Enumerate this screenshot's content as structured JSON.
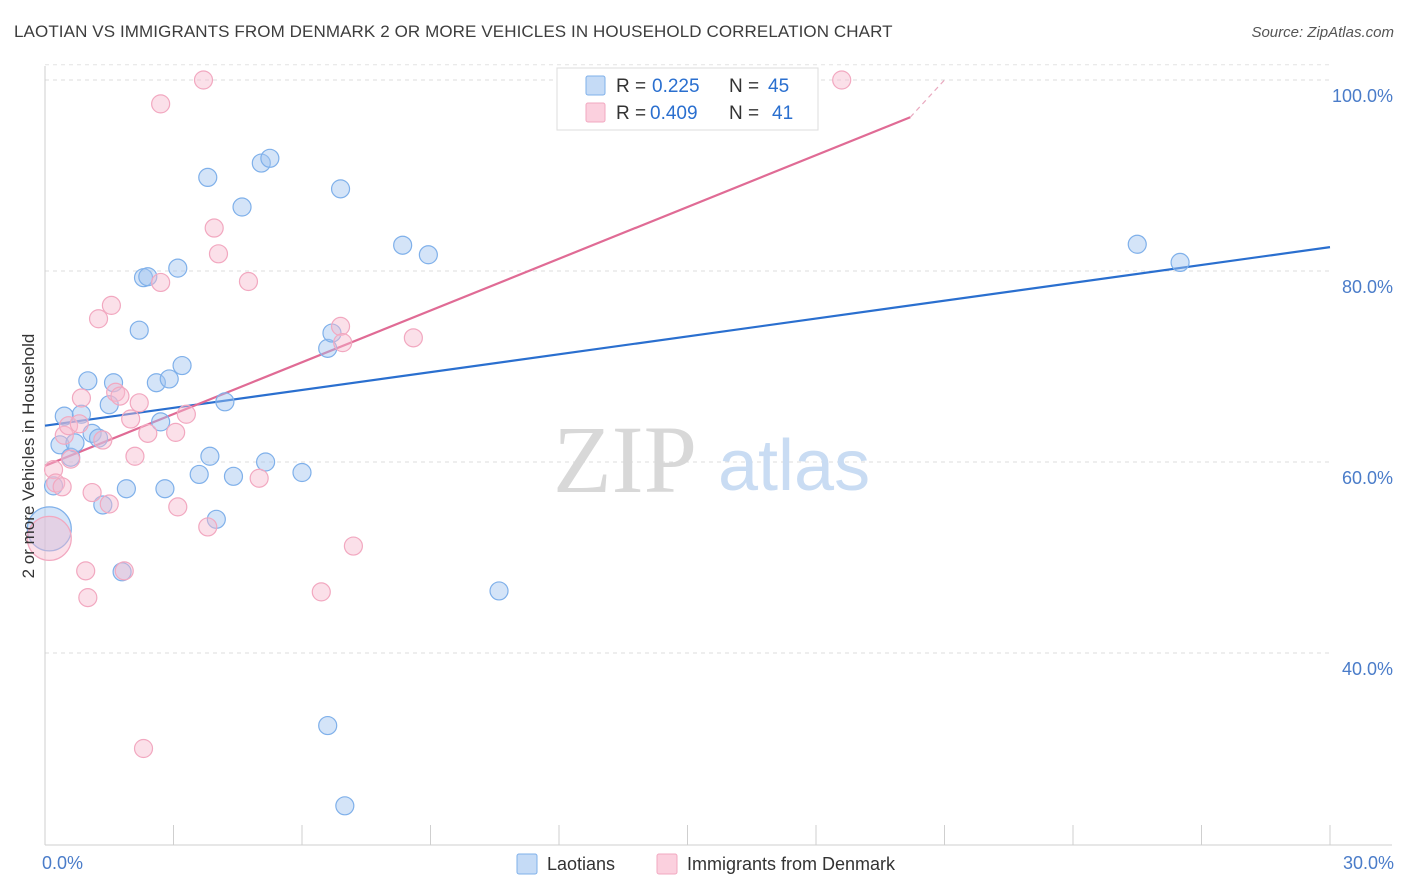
{
  "title": "LAOTIAN VS IMMIGRANTS FROM DENMARK 2 OR MORE VEHICLES IN HOUSEHOLD CORRELATION CHART",
  "source": "Source: ZipAtlas.com",
  "watermark": {
    "zip": "ZIP",
    "atlas": "atlas"
  },
  "chart_data": {
    "type": "scatter",
    "title": "LAOTIAN VS IMMIGRANTS FROM DENMARK 2 OR MORE VEHICLES IN HOUSEHOLD CORRELATION CHART",
    "xlabel": "",
    "ylabel": "2 or more Vehicles in Household",
    "xlim": [
      0,
      30
    ],
    "ylim": [
      20,
      103
    ],
    "x_tick_labels": {
      "left": "0.0%",
      "right": "30.0%"
    },
    "y_ticks": [
      {
        "value": 40,
        "label": "40.0%"
      },
      {
        "value": 60,
        "label": "60.0%"
      },
      {
        "value": 80,
        "label": "80.0%"
      },
      {
        "value": 100,
        "label": "100.0%"
      }
    ],
    "grid": true,
    "legend_position": "top-center",
    "series": [
      {
        "name": "Laotians",
        "color": "#7fb0ea",
        "line_color": "#2a6fcf",
        "R": "0.225",
        "N": "45",
        "trendline": {
          "x": [
            0,
            30
          ],
          "y": [
            63.8,
            82.5
          ]
        },
        "points": [
          {
            "x": 0.1,
            "y": 53.0,
            "big": true
          },
          {
            "x": 0.2,
            "y": 57.5
          },
          {
            "x": 0.35,
            "y": 61.8
          },
          {
            "x": 0.45,
            "y": 64.8
          },
          {
            "x": 0.6,
            "y": 60.5
          },
          {
            "x": 0.7,
            "y": 62.0
          },
          {
            "x": 0.85,
            "y": 65.0
          },
          {
            "x": 1.0,
            "y": 68.5
          },
          {
            "x": 1.1,
            "y": 63.0
          },
          {
            "x": 1.25,
            "y": 62.5
          },
          {
            "x": 1.35,
            "y": 55.5
          },
          {
            "x": 1.5,
            "y": 66.0
          },
          {
            "x": 1.6,
            "y": 68.3
          },
          {
            "x": 1.8,
            "y": 48.5
          },
          {
            "x": 1.9,
            "y": 57.2
          },
          {
            "x": 2.2,
            "y": 73.8
          },
          {
            "x": 2.3,
            "y": 79.3
          },
          {
            "x": 2.4,
            "y": 79.4
          },
          {
            "x": 2.6,
            "y": 68.3
          },
          {
            "x": 2.7,
            "y": 64.2
          },
          {
            "x": 2.8,
            "y": 57.2
          },
          {
            "x": 2.9,
            "y": 68.7
          },
          {
            "x": 3.1,
            "y": 80.3
          },
          {
            "x": 3.2,
            "y": 70.1
          },
          {
            "x": 3.6,
            "y": 58.7
          },
          {
            "x": 3.8,
            "y": 89.8
          },
          {
            "x": 3.85,
            "y": 60.6
          },
          {
            "x": 4.0,
            "y": 54.0
          },
          {
            "x": 4.2,
            "y": 66.3
          },
          {
            "x": 4.4,
            "y": 58.5
          },
          {
            "x": 4.6,
            "y": 86.7
          },
          {
            "x": 5.05,
            "y": 91.3
          },
          {
            "x": 5.15,
            "y": 60.0
          },
          {
            "x": 5.25,
            "y": 91.8
          },
          {
            "x": 6.0,
            "y": 58.9
          },
          {
            "x": 6.6,
            "y": 71.9
          },
          {
            "x": 6.7,
            "y": 73.5
          },
          {
            "x": 6.6,
            "y": 32.4
          },
          {
            "x": 6.9,
            "y": 88.6
          },
          {
            "x": 7.0,
            "y": 24.0
          },
          {
            "x": 8.35,
            "y": 82.7
          },
          {
            "x": 8.95,
            "y": 81.7
          },
          {
            "x": 10.6,
            "y": 46.5
          },
          {
            "x": 25.5,
            "y": 82.8
          },
          {
            "x": 26.5,
            "y": 80.9
          }
        ]
      },
      {
        "name": "Immigrants from Denmark",
        "color": "#f2a8c0",
        "line_color": "#e06b95",
        "R": "0.409",
        "N": "41",
        "trendline": {
          "x": [
            0,
            20.2
          ],
          "y": [
            59.6,
            96.1
          ]
        },
        "trendline_dashed": {
          "x": [
            20.2,
            21.0
          ],
          "y": [
            96.1,
            100.0
          ]
        },
        "points": [
          {
            "x": 0.1,
            "y": 52.0,
            "big": true
          },
          {
            "x": 0.2,
            "y": 59.2
          },
          {
            "x": 0.25,
            "y": 57.8
          },
          {
            "x": 0.4,
            "y": 57.4
          },
          {
            "x": 0.45,
            "y": 62.8
          },
          {
            "x": 0.55,
            "y": 63.8
          },
          {
            "x": 0.6,
            "y": 60.3
          },
          {
            "x": 0.8,
            "y": 64.0
          },
          {
            "x": 0.85,
            "y": 66.7
          },
          {
            "x": 0.95,
            "y": 48.6
          },
          {
            "x": 1.0,
            "y": 45.8
          },
          {
            "x": 1.1,
            "y": 56.8
          },
          {
            "x": 1.25,
            "y": 75.0
          },
          {
            "x": 1.35,
            "y": 62.3
          },
          {
            "x": 1.5,
            "y": 55.6
          },
          {
            "x": 1.55,
            "y": 76.4
          },
          {
            "x": 1.65,
            "y": 67.3
          },
          {
            "x": 1.75,
            "y": 66.9
          },
          {
            "x": 1.85,
            "y": 48.6
          },
          {
            "x": 2.0,
            "y": 64.5
          },
          {
            "x": 2.1,
            "y": 60.6
          },
          {
            "x": 2.2,
            "y": 66.2
          },
          {
            "x": 2.3,
            "y": 30.0
          },
          {
            "x": 2.4,
            "y": 63.0
          },
          {
            "x": 2.7,
            "y": 78.8
          },
          {
            "x": 2.7,
            "y": 97.5
          },
          {
            "x": 3.05,
            "y": 63.1
          },
          {
            "x": 3.1,
            "y": 55.3
          },
          {
            "x": 3.3,
            "y": 65.0
          },
          {
            "x": 3.7,
            "y": 100.0
          },
          {
            "x": 3.8,
            "y": 53.2
          },
          {
            "x": 3.95,
            "y": 84.5
          },
          {
            "x": 4.05,
            "y": 81.8
          },
          {
            "x": 4.75,
            "y": 78.9
          },
          {
            "x": 5.0,
            "y": 58.3
          },
          {
            "x": 6.45,
            "y": 46.4
          },
          {
            "x": 6.9,
            "y": 74.2
          },
          {
            "x": 6.95,
            "y": 72.5
          },
          {
            "x": 7.2,
            "y": 51.2
          },
          {
            "x": 8.6,
            "y": 73.0
          },
          {
            "x": 18.6,
            "y": 100.0
          }
        ]
      }
    ]
  },
  "legend": {
    "rows": [
      {
        "r_label": "R =",
        "r_value": "0.225",
        "n_label": "N =",
        "n_value": "45"
      },
      {
        "r_label": "R =",
        "r_value": "0.409",
        "n_label": "N =",
        "n_value": "41"
      }
    ]
  },
  "bottom_legend": [
    "Laotians",
    "Immigrants from Denmark"
  ]
}
